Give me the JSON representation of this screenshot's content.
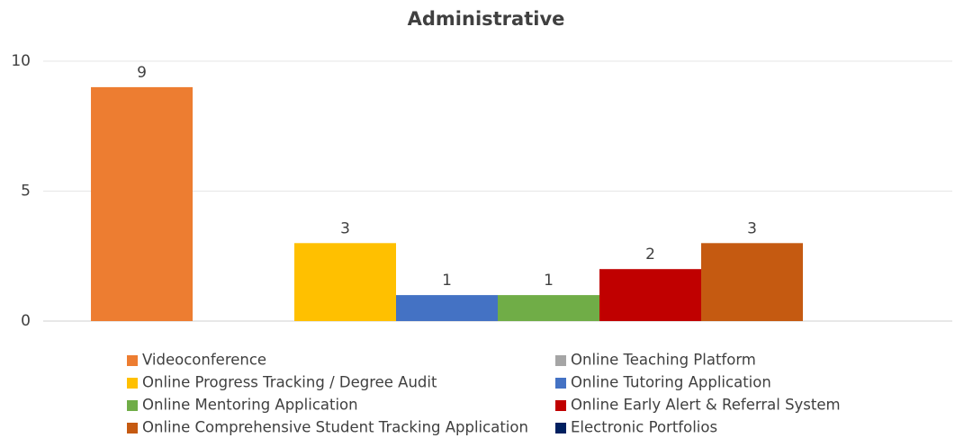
{
  "chart_data": {
    "type": "bar",
    "title": "Administrative",
    "categories": [
      null
    ],
    "series": [
      {
        "name": "Videoconference",
        "color": "#ed7d31",
        "values": [
          9
        ]
      },
      {
        "name": "Online Teaching Platform",
        "color": "#a5a5a5",
        "values": [
          null
        ]
      },
      {
        "name": "Online Progress Tracking / Degree Audit",
        "color": "#ffc000",
        "values": [
          3
        ]
      },
      {
        "name": "Online Tutoring Application",
        "color": "#4472c4",
        "values": [
          1
        ]
      },
      {
        "name": "Online Mentoring Application",
        "color": "#70ad47",
        "values": [
          1
        ]
      },
      {
        "name": "Online Early Alert & Referral System",
        "color": "#c00000",
        "values": [
          2
        ]
      },
      {
        "name": "Online Comprehensive Student Tracking Application",
        "color": "#c55a11",
        "values": [
          3
        ]
      },
      {
        "name": "Electronic Portfolios",
        "color": "#002060",
        "values": [
          null
        ]
      }
    ],
    "ylim": [
      0,
      10
    ],
    "yticks": [
      0,
      5,
      10
    ],
    "grid": true,
    "legend": "bottom"
  }
}
